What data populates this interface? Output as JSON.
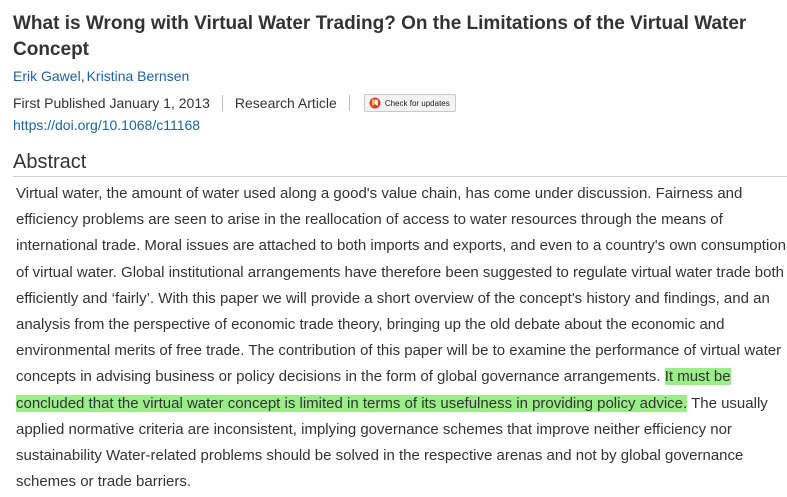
{
  "article": {
    "title": "What is Wrong with Virtual Water Trading? On the Limitations of the Virtual Water Concept",
    "authors": [
      {
        "name": "Erik Gawel"
      },
      {
        "name": "Kristina Bernsen"
      }
    ],
    "author_separator": ",",
    "published": "First Published January 1, 2013",
    "article_type": "Research Article",
    "check_updates_label": "Check for updates",
    "doi": "https://doi.org/10.1068/c11168"
  },
  "abstract": {
    "heading": "Abstract",
    "text_before": "Virtual water, the amount of water used along a good's value chain, has come under discussion. Fairness and efficiency problems are seen to arise in the reallocation of access to water resources through the means of international trade. Moral issues are attached to both imports and exports, and even to a country's own consumption of virtual water. Global institutional arrangements have therefore been suggested to regulate virtual water trade both efficiently and ‘fairly’. With this paper we will provide a short overview of the concept's history and findings, and an analysis from the perspective of economic trade theory, bringing up the old debate about the economic and environmental merits of free trade. The contribution of this paper will be to examine the performance of virtual water concepts in advising business or policy decisions in the form of global governance arrangements. ",
    "highlighted": "It must be concluded that the virtual water concept is limited in terms of its usefulness in providing policy advice.",
    "text_after": " The usually applied normative criteria are inconsistent, implying governance schemes that improve neither efficiency nor sustainability Water-related problems should be solved in the respective arenas and not by global governance schemes or trade barriers.",
    "highlight_color": "#99ee88"
  },
  "colors": {
    "link": "#1a62a8",
    "text": "#333333"
  }
}
